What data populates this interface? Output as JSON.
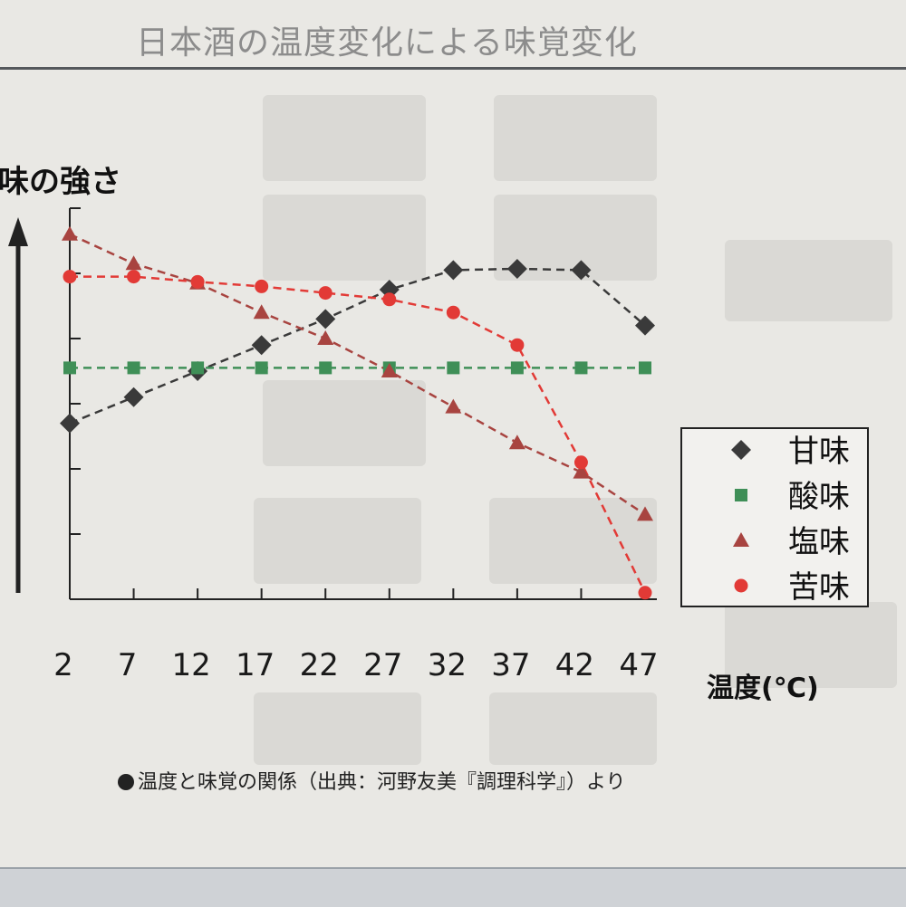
{
  "slide": {
    "title": "日本酒の温度変化による味覚変化",
    "caption": "温度と味覚の関係（出典：河野友美『調理科学』）より"
  },
  "chart_data": {
    "type": "line",
    "title": "",
    "ylabel": "味の強さ",
    "xlabel": "温度(℃)",
    "x": [
      2,
      7,
      12,
      17,
      22,
      27,
      32,
      37,
      42,
      47
    ],
    "ylim": [
      0,
      6
    ],
    "grid": false,
    "legend_position": "right",
    "series": [
      {
        "name": "甘味",
        "marker": "diamond",
        "color": "#3a3a3a",
        "values": [
          2.7,
          3.1,
          3.5,
          3.9,
          4.3,
          4.75,
          5.05,
          5.07,
          5.05,
          4.2
        ]
      },
      {
        "name": "酸味",
        "marker": "square",
        "color": "#3f8f57",
        "values": [
          3.55,
          3.55,
          3.55,
          3.55,
          3.55,
          3.55,
          3.55,
          3.55,
          3.55,
          3.55
        ]
      },
      {
        "name": "塩味",
        "marker": "triangle",
        "color": "#a84440",
        "values": [
          5.6,
          5.15,
          4.85,
          4.4,
          4.0,
          3.5,
          2.95,
          2.4,
          1.95,
          1.3
        ]
      },
      {
        "name": "苦味",
        "marker": "circle",
        "color": "#e23a36",
        "values": [
          4.95,
          4.95,
          4.87,
          4.8,
          4.7,
          4.6,
          4.4,
          3.9,
          2.1,
          0.1
        ]
      }
    ]
  }
}
